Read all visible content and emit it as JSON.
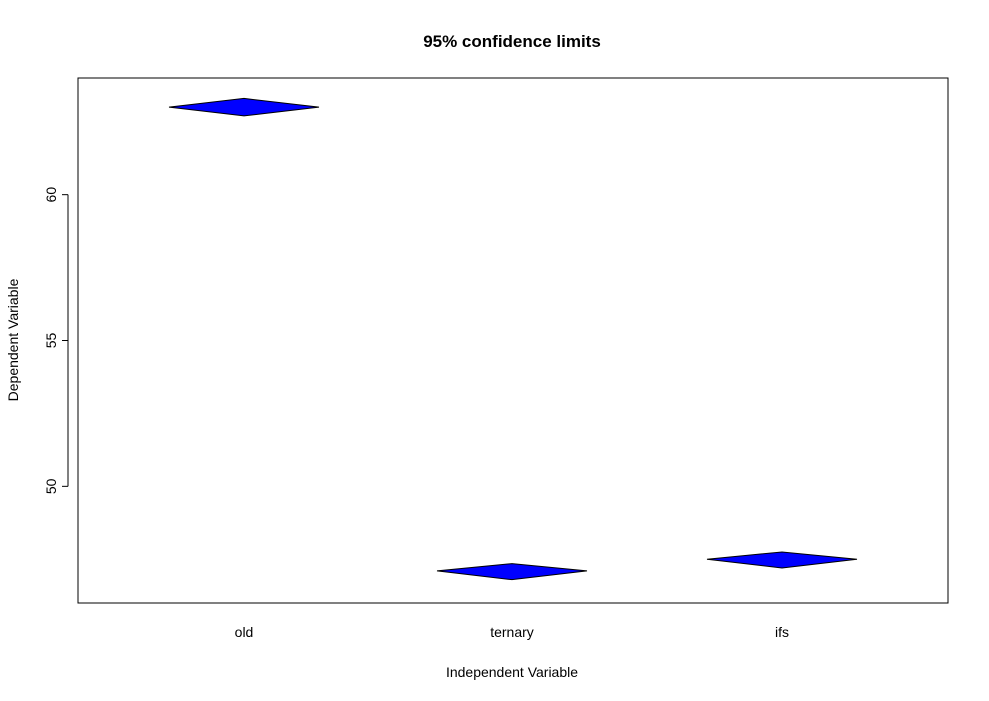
{
  "chart_data": {
    "type": "diamond",
    "title": "95% confidence limits",
    "xlabel": "Independent Variable",
    "ylabel": "Dependent Variable",
    "categories": [
      "old",
      "ternary",
      "ifs"
    ],
    "series": [
      {
        "values": [
          63.0,
          47.1,
          47.5
        ],
        "lower": [
          62.7,
          46.8,
          47.2
        ],
        "upper": [
          63.3,
          47.35,
          47.75
        ]
      }
    ],
    "yticks": [
      50,
      55,
      60
    ],
    "ylim": [
      46.0,
      64.0
    ],
    "fill_color": "#0000ff",
    "outline_color": "#000000",
    "grid": false,
    "legend": "none"
  }
}
